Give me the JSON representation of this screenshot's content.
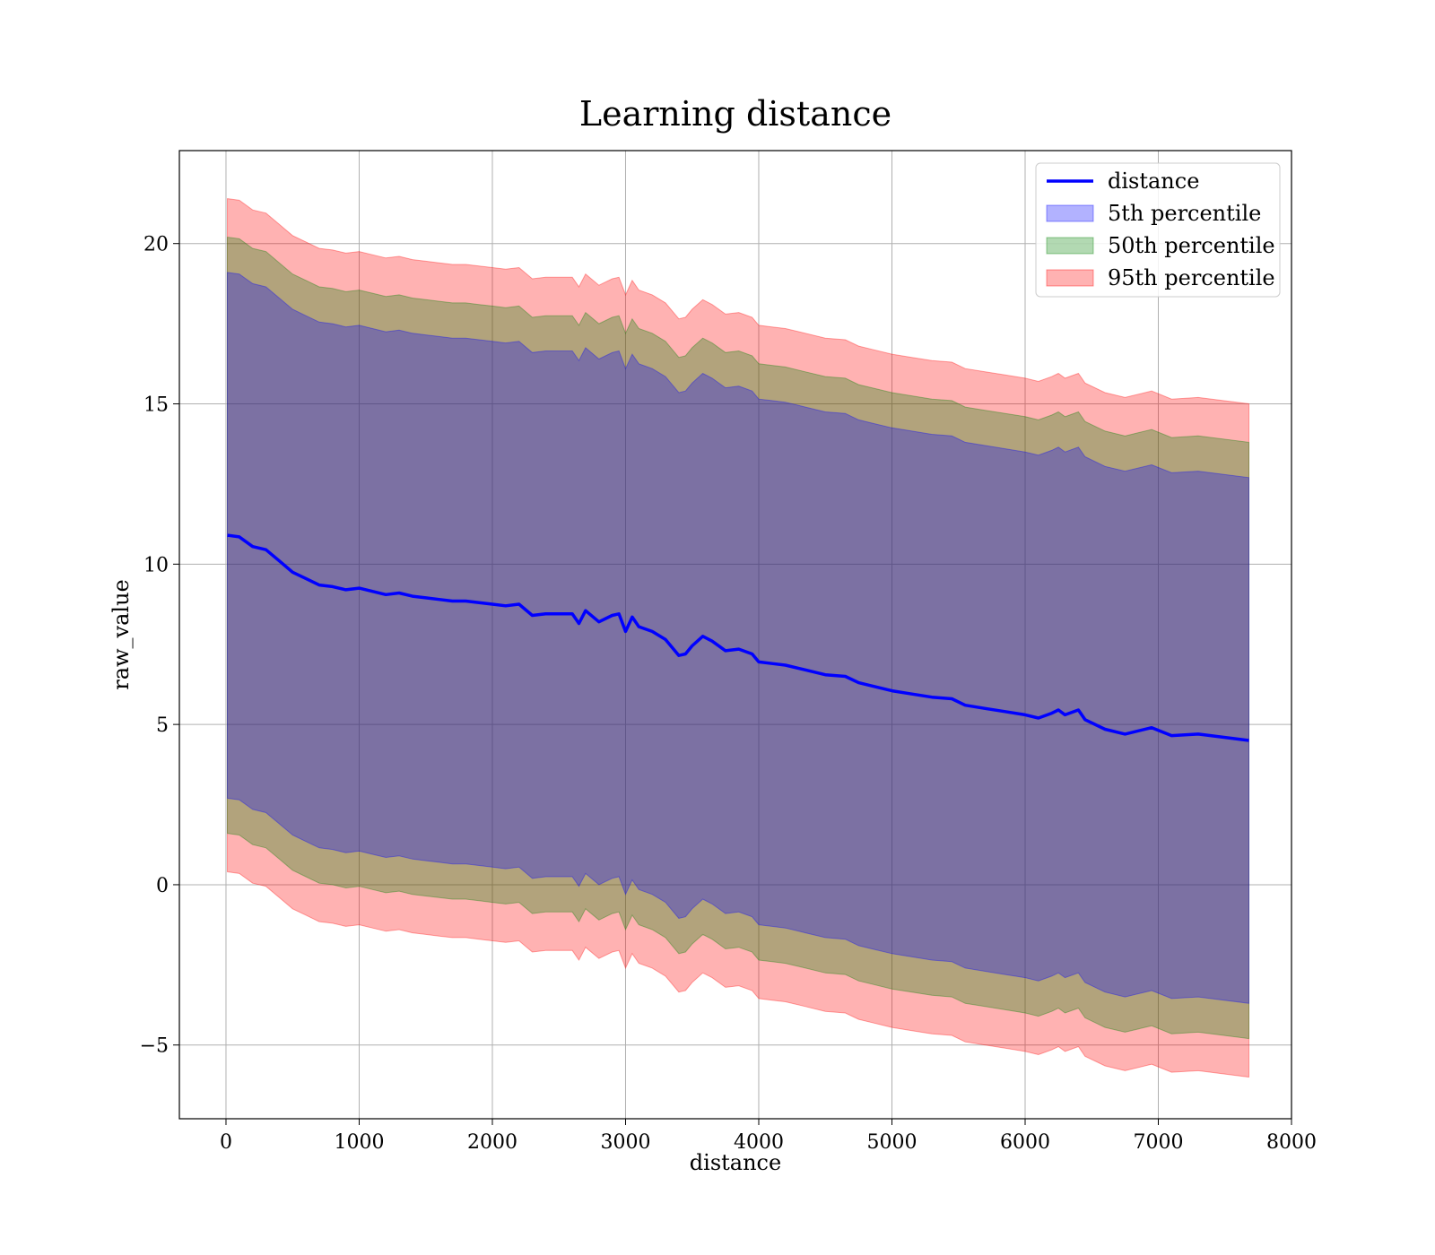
{
  "chart_data": {
    "type": "line",
    "title": "Learning distance",
    "xlabel": "distance",
    "ylabel": "raw_value",
    "xlim": [
      -350,
      8000
    ],
    "ylim": [
      -7.3,
      22.9
    ],
    "x_ticks": [
      0,
      1000,
      2000,
      3000,
      4000,
      5000,
      6000,
      7000,
      8000
    ],
    "x_tick_labels": [
      "0",
      "1000",
      "2000",
      "3000",
      "4000",
      "5000",
      "6000",
      "7000",
      "8000"
    ],
    "y_ticks": [
      -5,
      0,
      5,
      10,
      15,
      20
    ],
    "y_tick_labels": [
      "−5",
      "0",
      "5",
      "10",
      "15",
      "20"
    ],
    "grid": true,
    "legend_position": "top-right",
    "colors": {
      "line": "#0000ff",
      "band_5th": "#0000ff",
      "band_50th": "#008000",
      "band_95th": "#ff0000"
    },
    "x": [
      10,
      100,
      200,
      300,
      400,
      500,
      600,
      700,
      800,
      900,
      1000,
      1100,
      1200,
      1300,
      1400,
      1500,
      1600,
      1700,
      1800,
      1900,
      2000,
      2100,
      2200,
      2300,
      2400,
      2500,
      2600,
      2650,
      2700,
      2800,
      2900,
      2950,
      3000,
      3050,
      3100,
      3200,
      3300,
      3400,
      3450,
      3500,
      3580,
      3650,
      3750,
      3850,
      3950,
      4000,
      4100,
      4200,
      4350,
      4500,
      4650,
      4750,
      4850,
      5000,
      5150,
      5300,
      5450,
      5550,
      5700,
      5850,
      6000,
      6100,
      6200,
      6250,
      6300,
      6400,
      6450,
      6600,
      6750,
      6950,
      7100,
      7300,
      7680
    ],
    "series": [
      {
        "name": "distance",
        "values": [
          10.9,
          10.85,
          10.55,
          10.45,
          10.1,
          9.75,
          9.55,
          9.35,
          9.3,
          9.2,
          9.25,
          9.15,
          9.05,
          9.1,
          9.0,
          8.95,
          8.9,
          8.85,
          8.85,
          8.8,
          8.75,
          8.7,
          8.75,
          8.4,
          8.45,
          8.45,
          8.45,
          8.15,
          8.55,
          8.2,
          8.4,
          8.45,
          7.9,
          8.35,
          8.05,
          7.9,
          7.65,
          7.15,
          7.2,
          7.45,
          7.75,
          7.6,
          7.3,
          7.35,
          7.2,
          6.95,
          6.9,
          6.85,
          6.7,
          6.55,
          6.5,
          6.3,
          6.2,
          6.05,
          5.95,
          5.85,
          5.8,
          5.6,
          5.5,
          5.4,
          5.3,
          5.2,
          5.35,
          5.45,
          5.3,
          5.45,
          5.15,
          4.85,
          4.7,
          4.9,
          4.65,
          4.7,
          4.5
        ]
      },
      {
        "name": "5th percentile",
        "lower": [
          2.7,
          2.65,
          2.35,
          2.25,
          1.9,
          1.55,
          1.35,
          1.15,
          1.1,
          1.0,
          1.05,
          0.95,
          0.85,
          0.9,
          0.8,
          0.75,
          0.7,
          0.65,
          0.65,
          0.6,
          0.55,
          0.5,
          0.55,
          0.2,
          0.25,
          0.25,
          0.25,
          -0.05,
          0.35,
          0.0,
          0.2,
          0.25,
          -0.3,
          0.15,
          -0.15,
          -0.3,
          -0.55,
          -1.05,
          -1.0,
          -0.75,
          -0.45,
          -0.6,
          -0.9,
          -0.85,
          -1.0,
          -1.25,
          -1.3,
          -1.35,
          -1.5,
          -1.65,
          -1.7,
          -1.9,
          -2.0,
          -2.15,
          -2.25,
          -2.35,
          -2.4,
          -2.6,
          -2.7,
          -2.8,
          -2.9,
          -3.0,
          -2.85,
          -2.75,
          -2.9,
          -2.75,
          -3.05,
          -3.35,
          -3.5,
          -3.3,
          -3.55,
          -3.5,
          -3.7
        ],
        "upper": [
          19.1,
          19.05,
          18.75,
          18.65,
          18.3,
          17.95,
          17.75,
          17.55,
          17.5,
          17.4,
          17.45,
          17.35,
          17.25,
          17.3,
          17.2,
          17.15,
          17.1,
          17.05,
          17.05,
          17.0,
          16.95,
          16.9,
          16.95,
          16.6,
          16.65,
          16.65,
          16.65,
          16.35,
          16.75,
          16.4,
          16.6,
          16.65,
          16.1,
          16.55,
          16.25,
          16.1,
          15.85,
          15.35,
          15.4,
          15.65,
          15.95,
          15.8,
          15.5,
          15.55,
          15.4,
          15.15,
          15.1,
          15.05,
          14.9,
          14.75,
          14.7,
          14.5,
          14.4,
          14.25,
          14.15,
          14.05,
          14.0,
          13.8,
          13.7,
          13.6,
          13.5,
          13.4,
          13.55,
          13.65,
          13.5,
          13.65,
          13.35,
          13.05,
          12.9,
          13.1,
          12.85,
          12.9,
          12.7
        ]
      },
      {
        "name": "50th percentile",
        "lower": [
          1.6,
          1.55,
          1.25,
          1.15,
          0.8,
          0.45,
          0.25,
          0.05,
          0.0,
          -0.1,
          -0.05,
          -0.15,
          -0.25,
          -0.2,
          -0.3,
          -0.35,
          -0.4,
          -0.45,
          -0.45,
          -0.5,
          -0.55,
          -0.6,
          -0.55,
          -0.9,
          -0.85,
          -0.85,
          -0.85,
          -1.15,
          -0.75,
          -1.1,
          -0.9,
          -0.85,
          -1.4,
          -0.95,
          -1.25,
          -1.4,
          -1.65,
          -2.15,
          -2.1,
          -1.85,
          -1.55,
          -1.7,
          -2.0,
          -1.95,
          -2.1,
          -2.35,
          -2.4,
          -2.45,
          -2.6,
          -2.75,
          -2.8,
          -3.0,
          -3.1,
          -3.25,
          -3.35,
          -3.45,
          -3.5,
          -3.7,
          -3.8,
          -3.9,
          -4.0,
          -4.1,
          -3.95,
          -3.85,
          -4.0,
          -3.85,
          -4.15,
          -4.45,
          -4.6,
          -4.4,
          -4.65,
          -4.6,
          -4.8
        ],
        "upper": [
          20.2,
          20.15,
          19.85,
          19.75,
          19.4,
          19.05,
          18.85,
          18.65,
          18.6,
          18.5,
          18.55,
          18.45,
          18.35,
          18.4,
          18.3,
          18.25,
          18.2,
          18.15,
          18.15,
          18.1,
          18.05,
          18.0,
          18.05,
          17.7,
          17.75,
          17.75,
          17.75,
          17.45,
          17.85,
          17.5,
          17.7,
          17.75,
          17.2,
          17.65,
          17.35,
          17.2,
          16.95,
          16.45,
          16.5,
          16.75,
          17.05,
          16.9,
          16.6,
          16.65,
          16.5,
          16.25,
          16.2,
          16.15,
          16.0,
          15.85,
          15.8,
          15.6,
          15.5,
          15.35,
          15.25,
          15.15,
          15.1,
          14.9,
          14.8,
          14.7,
          14.6,
          14.5,
          14.65,
          14.75,
          14.6,
          14.75,
          14.45,
          14.15,
          14.0,
          14.2,
          13.95,
          14.0,
          13.8
        ]
      },
      {
        "name": "95th percentile",
        "lower": [
          0.4,
          0.35,
          0.05,
          -0.05,
          -0.4,
          -0.75,
          -0.95,
          -1.15,
          -1.2,
          -1.3,
          -1.25,
          -1.35,
          -1.45,
          -1.4,
          -1.5,
          -1.55,
          -1.6,
          -1.65,
          -1.65,
          -1.7,
          -1.75,
          -1.8,
          -1.75,
          -2.1,
          -2.05,
          -2.05,
          -2.05,
          -2.35,
          -1.95,
          -2.3,
          -2.1,
          -2.05,
          -2.6,
          -2.15,
          -2.45,
          -2.6,
          -2.85,
          -3.35,
          -3.3,
          -3.05,
          -2.75,
          -2.9,
          -3.2,
          -3.15,
          -3.3,
          -3.55,
          -3.6,
          -3.65,
          -3.8,
          -3.95,
          -4.0,
          -4.2,
          -4.3,
          -4.45,
          -4.55,
          -4.65,
          -4.7,
          -4.9,
          -5.0,
          -5.1,
          -5.2,
          -5.3,
          -5.15,
          -5.05,
          -5.2,
          -5.05,
          -5.35,
          -5.65,
          -5.8,
          -5.6,
          -5.85,
          -5.8,
          -6.0
        ],
        "upper": [
          21.4,
          21.35,
          21.05,
          20.95,
          20.6,
          20.25,
          20.05,
          19.85,
          19.8,
          19.7,
          19.75,
          19.65,
          19.55,
          19.6,
          19.5,
          19.45,
          19.4,
          19.35,
          19.35,
          19.3,
          19.25,
          19.2,
          19.25,
          18.9,
          18.95,
          18.95,
          18.95,
          18.65,
          19.05,
          18.7,
          18.9,
          18.95,
          18.4,
          18.85,
          18.55,
          18.4,
          18.15,
          17.65,
          17.7,
          17.95,
          18.25,
          18.1,
          17.8,
          17.85,
          17.7,
          17.45,
          17.4,
          17.35,
          17.2,
          17.05,
          17.0,
          16.8,
          16.7,
          16.55,
          16.45,
          16.35,
          16.3,
          16.1,
          16.0,
          15.9,
          15.8,
          15.7,
          15.85,
          15.95,
          15.8,
          15.95,
          15.65,
          15.35,
          15.2,
          15.4,
          15.15,
          15.2,
          15.0
        ]
      }
    ]
  }
}
